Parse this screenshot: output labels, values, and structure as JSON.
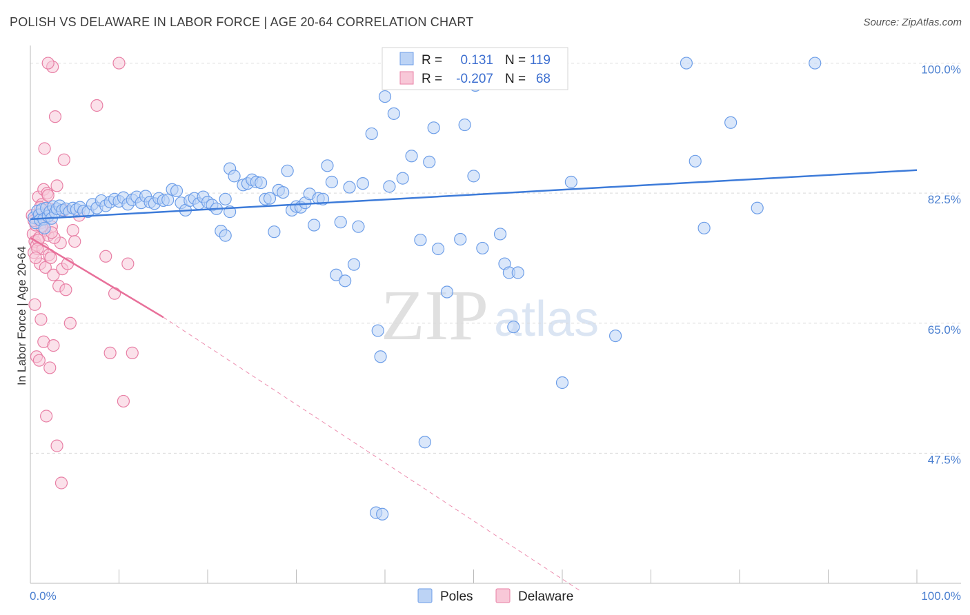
{
  "header": {
    "title": "POLISH VS DELAWARE IN LABOR FORCE | AGE 20-64 CORRELATION CHART",
    "source": "Source: ZipAtlas.com"
  },
  "watermark": {
    "zip": "ZIP",
    "atlas": "atlas"
  },
  "legend": {
    "r_label": "R =",
    "n_label": "N =",
    "rows": [
      {
        "name": "Poles",
        "r": "0.131",
        "n": "119",
        "color": "#6d9ee8",
        "fill": "#bcd3f5"
      },
      {
        "name": "Delaware",
        "r": "-0.207",
        "n": "68",
        "color": "#e87fa5",
        "fill": "#f8c8d8"
      }
    ]
  },
  "colors": {
    "blue": "#3d7bd9",
    "pink": "#e8709a",
    "grid": "#d9d9d9"
  },
  "chart_data": {
    "type": "scatter",
    "title": "POLISH VS DELAWARE IN LABOR FORCE | AGE 20-64 CORRELATION CHART",
    "xlabel": "",
    "ylabel": "In Labor Force | Age 20-64",
    "xlim": [
      0,
      100
    ],
    "ylim": [
      30,
      102
    ],
    "x_tick_labels": [
      "0.0%",
      "100.0%"
    ],
    "y_ticks": [
      100,
      82.5,
      65,
      47.5
    ],
    "y_tick_labels": [
      "100.0%",
      "82.5%",
      "65.0%",
      "47.5%"
    ],
    "series": [
      {
        "name": "Poles",
        "r": 0.131,
        "n": 119,
        "trend": {
          "x": [
            0,
            100
          ],
          "y": [
            79.0,
            85.6
          ]
        },
        "points": [
          [
            0.4,
            79.2
          ],
          [
            0.6,
            78.5
          ],
          [
            0.8,
            80.1
          ],
          [
            1.0,
            79.6
          ],
          [
            1.1,
            78.9
          ],
          [
            1.3,
            80.3
          ],
          [
            1.5,
            79.0
          ],
          [
            1.6,
            77.8
          ],
          [
            1.8,
            80.5
          ],
          [
            2.0,
            79.4
          ],
          [
            2.2,
            80.0
          ],
          [
            2.4,
            79.1
          ],
          [
            2.6,
            80.7
          ],
          [
            2.8,
            79.9
          ],
          [
            3.0,
            80.4
          ],
          [
            3.3,
            80.8
          ],
          [
            3.6,
            80.2
          ],
          [
            4.0,
            80.4
          ],
          [
            4.4,
            80.0
          ],
          [
            4.8,
            80.5
          ],
          [
            5.2,
            80.3
          ],
          [
            5.6,
            80.6
          ],
          [
            6.0,
            80.1
          ],
          [
            6.5,
            80.0
          ],
          [
            7.0,
            81.0
          ],
          [
            7.5,
            80.5
          ],
          [
            8.0,
            81.5
          ],
          [
            8.5,
            80.8
          ],
          [
            9.0,
            81.3
          ],
          [
            9.5,
            81.7
          ],
          [
            10.0,
            81.4
          ],
          [
            10.5,
            81.9
          ],
          [
            11.0,
            81.0
          ],
          [
            11.5,
            81.6
          ],
          [
            12.0,
            82.0
          ],
          [
            12.5,
            81.2
          ],
          [
            13.0,
            82.1
          ],
          [
            13.5,
            81.3
          ],
          [
            14.0,
            81.1
          ],
          [
            14.5,
            81.8
          ],
          [
            15.0,
            81.5
          ],
          [
            15.5,
            81.6
          ],
          [
            16.0,
            83.0
          ],
          [
            16.5,
            82.8
          ],
          [
            17.0,
            81.2
          ],
          [
            17.5,
            80.2
          ],
          [
            18.0,
            81.5
          ],
          [
            18.5,
            81.8
          ],
          [
            19.0,
            81.1
          ],
          [
            19.5,
            82.0
          ],
          [
            20.0,
            81.3
          ],
          [
            20.5,
            80.9
          ],
          [
            21.0,
            80.4
          ],
          [
            22.0,
            81.7
          ],
          [
            22.5,
            80.0
          ],
          [
            21.5,
            77.4
          ],
          [
            22.0,
            76.8
          ],
          [
            22.5,
            85.8
          ],
          [
            23.0,
            84.8
          ],
          [
            24.0,
            83.6
          ],
          [
            24.5,
            83.8
          ],
          [
            25.0,
            84.3
          ],
          [
            25.5,
            84.0
          ],
          [
            26.0,
            83.9
          ],
          [
            26.5,
            81.7
          ],
          [
            27.0,
            81.8
          ],
          [
            27.5,
            77.3
          ],
          [
            28.0,
            82.9
          ],
          [
            28.5,
            82.6
          ],
          [
            29.0,
            85.5
          ],
          [
            29.5,
            80.2
          ],
          [
            30.0,
            80.7
          ],
          [
            30.5,
            80.6
          ],
          [
            31.0,
            81.2
          ],
          [
            31.5,
            82.4
          ],
          [
            32.0,
            78.2
          ],
          [
            32.5,
            81.8
          ],
          [
            33.0,
            81.7
          ],
          [
            33.5,
            86.2
          ],
          [
            34.0,
            84.0
          ],
          [
            34.5,
            71.5
          ],
          [
            35.0,
            78.6
          ],
          [
            35.5,
            70.7
          ],
          [
            36.0,
            83.3
          ],
          [
            36.5,
            72.9
          ],
          [
            37.0,
            78.0
          ],
          [
            37.5,
            83.8
          ],
          [
            38.5,
            90.5
          ],
          [
            39.2,
            64.0
          ],
          [
            39.5,
            60.5
          ],
          [
            39.0,
            39.5
          ],
          [
            39.7,
            39.3
          ],
          [
            40.0,
            95.5
          ],
          [
            40.5,
            83.4
          ],
          [
            41.0,
            93.2
          ],
          [
            42.0,
            84.5
          ],
          [
            43.0,
            87.5
          ],
          [
            44.0,
            76.2
          ],
          [
            44.5,
            49.0
          ],
          [
            45.0,
            86.7
          ],
          [
            45.5,
            91.3
          ],
          [
            46.0,
            75.0
          ],
          [
            47.0,
            69.2
          ],
          [
            48.0,
            100.0
          ],
          [
            48.5,
            76.3
          ],
          [
            49.0,
            91.7
          ],
          [
            50.0,
            84.8
          ],
          [
            50.2,
            97.0
          ],
          [
            51.0,
            75.1
          ],
          [
            52.0,
            97.5
          ],
          [
            53.0,
            77.0
          ],
          [
            53.5,
            73.0
          ],
          [
            54.0,
            71.8
          ],
          [
            54.5,
            64.5
          ],
          [
            55.0,
            71.8
          ],
          [
            56.0,
            100.0
          ],
          [
            60.0,
            57.0
          ],
          [
            61.0,
            84.0
          ],
          [
            66.0,
            63.3
          ],
          [
            74.0,
            100.0
          ],
          [
            75.0,
            86.8
          ],
          [
            76.0,
            77.8
          ],
          [
            79.0,
            92.0
          ],
          [
            82.0,
            80.5
          ],
          [
            88.5,
            100.0
          ]
        ]
      },
      {
        "name": "Delaware",
        "r": -0.207,
        "n": 68,
        "trend": {
          "x": [
            0,
            15
          ],
          "y": [
            76.5,
            65.8
          ]
        },
        "trend_dashed": {
          "x": [
            15,
            62
          ],
          "y": [
            65.8,
            29.0
          ]
        },
        "points": [
          [
            0.2,
            79.5
          ],
          [
            0.3,
            77.0
          ],
          [
            0.4,
            74.5
          ],
          [
            0.5,
            76.0
          ],
          [
            0.6,
            78.2
          ],
          [
            0.7,
            75.5
          ],
          [
            0.8,
            79.0
          ],
          [
            0.9,
            82.0
          ],
          [
            1.0,
            76.5
          ],
          [
            1.1,
            73.0
          ],
          [
            1.2,
            78.5
          ],
          [
            1.3,
            81.0
          ],
          [
            1.4,
            75.0
          ],
          [
            1.5,
            83.0
          ],
          [
            1.6,
            77.5
          ],
          [
            1.7,
            72.5
          ],
          [
            1.8,
            79.8
          ],
          [
            1.9,
            82.5
          ],
          [
            2.0,
            76.8
          ],
          [
            2.1,
            74.2
          ],
          [
            2.2,
            80.4
          ],
          [
            2.3,
            73.8
          ],
          [
            2.4,
            78.0
          ],
          [
            2.5,
            99.5
          ],
          [
            2.6,
            71.5
          ],
          [
            2.8,
            92.8
          ],
          [
            3.0,
            83.5
          ],
          [
            3.2,
            70.0
          ],
          [
            3.4,
            75.8
          ],
          [
            3.6,
            72.3
          ],
          [
            3.8,
            80.2
          ],
          [
            4.0,
            69.5
          ],
          [
            4.2,
            73.0
          ],
          [
            4.5,
            65.0
          ],
          [
            4.8,
            77.5
          ],
          [
            5.0,
            76.0
          ],
          [
            5.5,
            79.5
          ],
          [
            7.5,
            94.3
          ],
          [
            8.5,
            74.0
          ],
          [
            9.0,
            61.0
          ],
          [
            9.5,
            69.0
          ],
          [
            10.0,
            100.0
          ],
          [
            10.5,
            54.5
          ],
          [
            11.0,
            73.0
          ],
          [
            11.5,
            61.0
          ],
          [
            0.5,
            67.5
          ],
          [
            0.7,
            60.5
          ],
          [
            1.0,
            60.0
          ],
          [
            1.2,
            65.5
          ],
          [
            1.5,
            62.5
          ],
          [
            1.8,
            52.5
          ],
          [
            2.2,
            59.0
          ],
          [
            2.6,
            62.0
          ],
          [
            3.0,
            48.5
          ],
          [
            3.5,
            43.5
          ],
          [
            2.0,
            100.0
          ],
          [
            1.6,
            88.5
          ],
          [
            3.8,
            87.0
          ],
          [
            0.4,
            78.8
          ],
          [
            0.9,
            76.2
          ],
          [
            1.3,
            78.0
          ],
          [
            2.7,
            76.5
          ],
          [
            2.4,
            77.2
          ],
          [
            0.8,
            75.0
          ],
          [
            1.1,
            80.6
          ],
          [
            2.0,
            82.2
          ],
          [
            0.6,
            73.8
          ],
          [
            1.4,
            79.2
          ]
        ]
      }
    ]
  }
}
